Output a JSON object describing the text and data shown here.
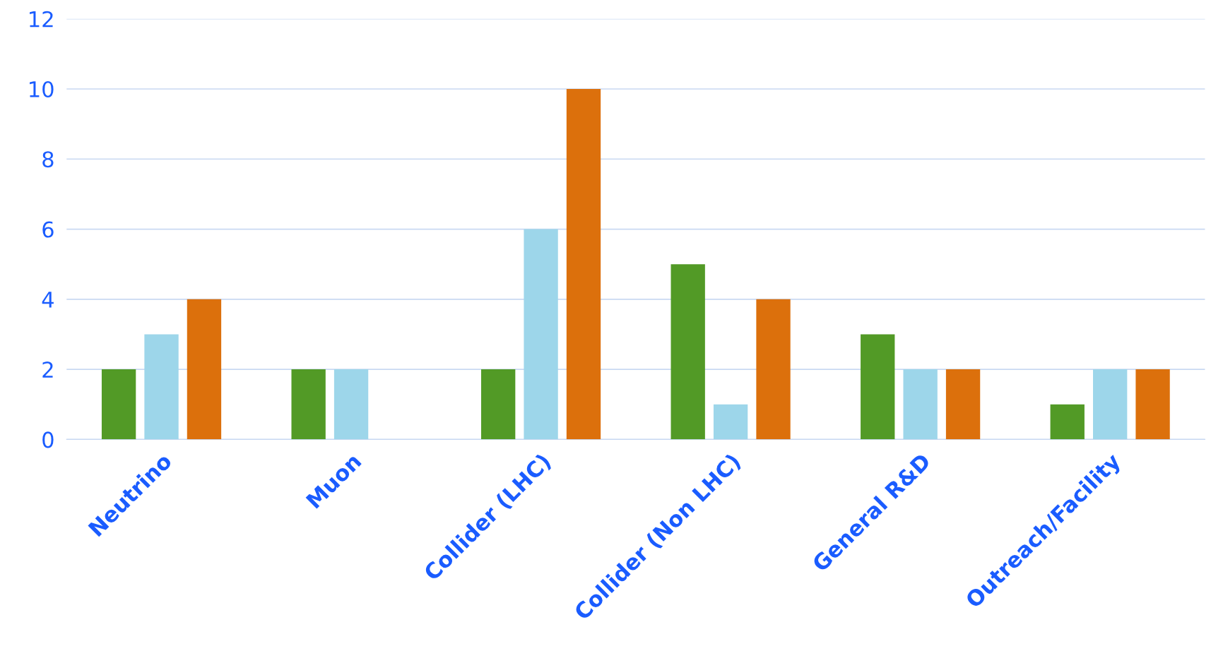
{
  "chart_data": {
    "type": "bar",
    "categories": [
      "Neutrino",
      "Muon",
      "Collider (LHC)",
      "Collider (Non LHC)",
      "General R&D",
      "Outreach/Facility"
    ],
    "series": [
      {
        "color": "#529a26",
        "values": [
          2,
          2,
          2,
          5,
          3,
          1
        ]
      },
      {
        "color": "#9dd6ea",
        "values": [
          3,
          2,
          6,
          1,
          2,
          2
        ]
      },
      {
        "color": "#dc700c",
        "values": [
          4,
          null,
          10,
          4,
          2,
          2
        ]
      }
    ],
    "ylim": [
      0,
      12
    ],
    "yticks": [
      0,
      2,
      4,
      6,
      8,
      10,
      12
    ],
    "grid": "y",
    "legend": false
  }
}
